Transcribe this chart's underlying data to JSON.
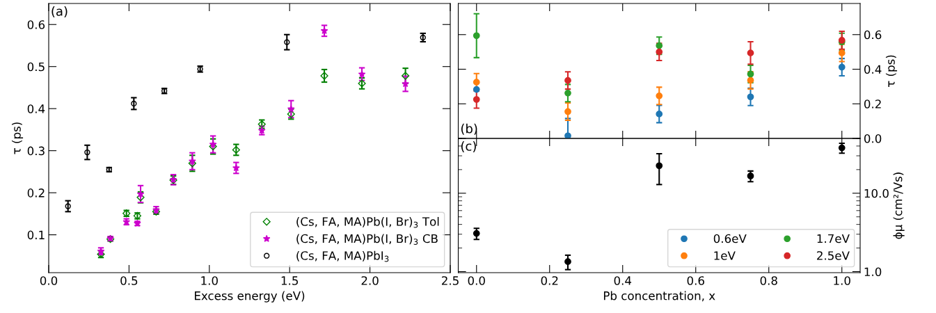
{
  "chart_data": [
    {
      "type": "scatter",
      "xlabel": "Excess energy (eV)",
      "ylabel": "τ (ps)",
      "xlim": [
        0.0,
        2.5
      ],
      "ylim": [
        0.01,
        0.65
      ],
      "xticks": [
        {
          "value": 0,
          "label": "0.0"
        },
        0.5,
        {
          "value": 1,
          "label": "1.0"
        },
        1.5,
        {
          "value": 2,
          "label": "2.0"
        },
        2.5
      ],
      "yticks": [
        0.1,
        0.2,
        0.3,
        0.4,
        0.5,
        0.6
      ],
      "legend": "bottom right",
      "annotations": [
        "(a)"
      ],
      "series": [
        {
          "name": "(Cs, FA, MA)Pb(I, Br)$_{3}$ Tol",
          "color": "#008000",
          "marker": "diamond",
          "x": [
            0.325,
            0.384,
            0.484,
            0.552,
            0.572,
            0.669,
            0.776,
            0.894,
            1.023,
            1.167,
            1.327,
            1.509,
            1.716,
            1.95,
            2.221
          ],
          "values": [
            0.054,
            0.09,
            0.151,
            0.145,
            0.189,
            0.155,
            0.23,
            0.27,
            0.31,
            0.302,
            0.363,
            0.387,
            0.478,
            0.46,
            0.478
          ],
          "errors": [
            0.008,
            0.005,
            0.007,
            0.007,
            0.013,
            0.006,
            0.01,
            0.019,
            0.018,
            0.013,
            0.01,
            0.012,
            0.015,
            0.013,
            0.018
          ]
        },
        {
          "name": "(Cs, FA, MA)Pb(I, Br)$_{3}$ CB",
          "color": "#cc00cc",
          "marker": "star",
          "x": [
            0.325,
            0.384,
            0.484,
            0.552,
            0.572,
            0.669,
            0.776,
            0.894,
            1.023,
            1.167,
            1.327,
            1.509,
            1.716,
            1.95,
            2.221
          ],
          "values": [
            0.061,
            0.091,
            0.131,
            0.127,
            0.197,
            0.159,
            0.231,
            0.275,
            0.315,
            0.259,
            0.348,
            0.399,
            0.585,
            0.482,
            0.459
          ],
          "errors": [
            0.008,
            0.005,
            0.007,
            0.005,
            0.02,
            0.008,
            0.012,
            0.02,
            0.02,
            0.013,
            0.01,
            0.02,
            0.013,
            0.015,
            0.018
          ]
        },
        {
          "name": "(Cs, FA, MA)PbI$_{3}$",
          "color": "#000000",
          "marker": "circle",
          "x": [
            0.12,
            0.24,
            0.376,
            0.53,
            0.72,
            0.943,
            1.483,
            2.33
          ],
          "values": [
            0.168,
            0.296,
            0.255,
            0.412,
            0.442,
            0.494,
            0.558,
            0.569
          ],
          "errors": [
            0.013,
            0.017,
            0.005,
            0.014,
            0.006,
            0.007,
            0.018,
            0.01
          ]
        }
      ]
    },
    {
      "type": "scatter",
      "ylabel": "τ (ps)",
      "xlim": [
        -0.05,
        1.05
      ],
      "ylim": [
        0.0,
        0.78
      ],
      "xticks": [
        0.0,
        0.2,
        0.4,
        0.6,
        0.8,
        1.0
      ],
      "yticks": [
        {
          "value": 0,
          "label": "0.0"
        },
        0.2,
        0.4,
        0.6
      ],
      "tick_labels": "y",
      "legend": "bottom right",
      "marker": "circle",
      "annotations": [
        "(b)"
      ],
      "x": [
        0.0,
        0.25,
        0.5,
        0.75,
        1.0
      ],
      "series": [
        {
          "name": "0.6eV",
          "color": "#1f77b4",
          "values": [
            0.283,
            0.015,
            0.141,
            0.24,
            0.412
          ],
          "errors": [
            null,
            0.1,
            0.05,
            0.05,
            0.05
          ]
        },
        {
          "name": "1eV",
          "color": "#ff7f0e",
          "values": [
            0.325,
            0.155,
            0.246,
            0.336,
            0.494
          ],
          "errors": [
            0.05,
            0.05,
            0.05,
            0.05,
            0.05
          ]
        },
        {
          "name": "1.7eV",
          "color": "#2ca02c",
          "values": [
            0.594,
            0.262,
            0.536,
            0.372,
            0.558
          ],
          "errors": [
            0.127,
            0.05,
            0.05,
            0.05,
            0.05
          ]
        },
        {
          "name": "2.5eV",
          "color": "#d62728",
          "values": [
            0.225,
            0.335,
            0.5,
            0.494,
            0.567
          ],
          "errors": [
            0.05,
            0.05,
            0.05,
            0.065,
            0.052
          ]
        }
      ]
    },
    {
      "type": "scatter",
      "xlabel": "Pb concentration, x",
      "ylabel": "ϕμ (cm²/Vs)",
      "log": "y",
      "xlim": [
        -0.05,
        1.05
      ],
      "ylim": [
        0.97,
        50
      ],
      "xticks": [
        {
          "value": 0,
          "label": "0.0"
        },
        0.2,
        0.4,
        0.6,
        0.8,
        {
          "value": 1,
          "label": "1.0"
        }
      ],
      "yticks": [
        {
          "value": 1,
          "label": "1.0"
        },
        {
          "value": 10,
          "label": "10.0"
        }
      ],
      "marker": "circle",
      "annotations": [
        "(c)"
      ],
      "x": [
        0.0,
        0.25,
        0.5,
        0.75,
        1.0
      ],
      "series": [
        {
          "color": "#000000",
          "values": [
            3.07,
            1.34,
            22.4,
            16.6,
            37.9
          ],
          "errors": [
            0.5,
            0.28,
            9.5,
            2.6,
            5.5
          ]
        }
      ]
    }
  ]
}
